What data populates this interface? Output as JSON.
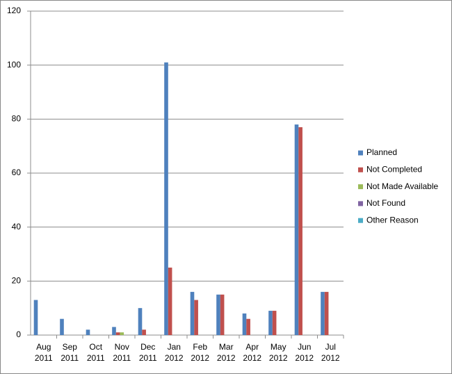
{
  "chart_data": {
    "type": "bar",
    "categories": [
      "Aug 2011",
      "Sep 2011",
      "Oct 2011",
      "Nov 2011",
      "Dec 2011",
      "Jan 2012",
      "Feb 2012",
      "Mar 2012",
      "Apr 2012",
      "May 2012",
      "Jun 2012",
      "Jul 2012"
    ],
    "series": [
      {
        "name": "Planned",
        "color": "#4f81bd",
        "values": [
          13,
          6,
          2,
          3,
          10,
          101,
          16,
          15,
          8,
          9,
          78,
          16
        ]
      },
      {
        "name": "Not Completed",
        "color": "#c0504d",
        "values": [
          0,
          0,
          0,
          1,
          2,
          25,
          13,
          15,
          6,
          9,
          77,
          16
        ]
      },
      {
        "name": "Not Made Available",
        "color": "#9bbb59",
        "values": [
          0,
          0,
          0,
          1,
          0,
          0,
          0,
          0,
          0,
          0,
          0,
          0
        ]
      },
      {
        "name": "Not Found",
        "color": "#8064a2",
        "values": [
          0,
          0,
          0,
          0,
          0,
          0,
          0,
          0,
          0,
          0,
          0,
          0
        ]
      },
      {
        "name": "Other Reason",
        "color": "#4bacc6",
        "values": [
          0,
          0,
          0,
          0,
          0,
          0,
          0,
          0,
          0,
          0,
          0,
          0
        ]
      }
    ],
    "ylim": [
      0,
      120
    ],
    "yticks": [
      0,
      20,
      40,
      60,
      80,
      100,
      120
    ],
    "grid": true,
    "legend": "right"
  }
}
